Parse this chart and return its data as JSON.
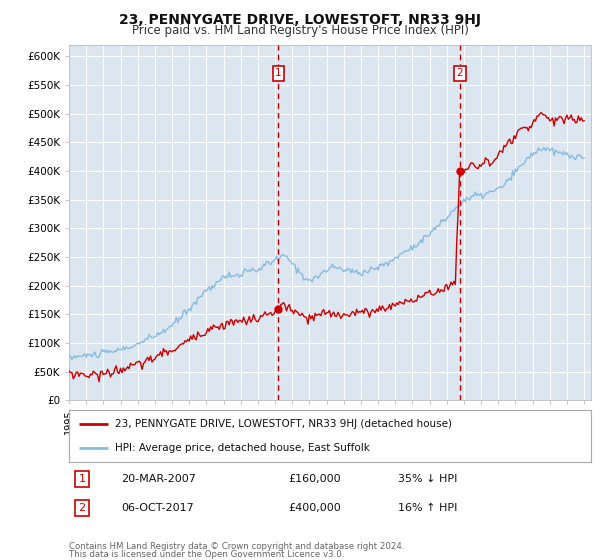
{
  "title": "23, PENNYGATE DRIVE, LOWESTOFT, NR33 9HJ",
  "subtitle": "Price paid vs. HM Land Registry's House Price Index (HPI)",
  "background_color": "#dce6f1",
  "ylim": [
    0,
    620000
  ],
  "yticks": [
    0,
    50000,
    100000,
    150000,
    200000,
    250000,
    300000,
    350000,
    400000,
    450000,
    500000,
    550000,
    600000
  ],
  "ytick_labels": [
    "£0",
    "£50K",
    "£100K",
    "£150K",
    "£200K",
    "£250K",
    "£300K",
    "£350K",
    "£400K",
    "£450K",
    "£500K",
    "£550K",
    "£600K"
  ],
  "xlim_min": 1995.0,
  "xlim_max": 2025.4,
  "legend1_label": "23, PENNYGATE DRIVE, LOWESTOFT, NR33 9HJ (detached house)",
  "legend2_label": "HPI: Average price, detached house, East Suffolk",
  "marker1_x": 2007.2,
  "marker1_value": 160000,
  "marker2_x": 2017.75,
  "marker2_value": 400000,
  "footer": "Contains HM Land Registry data © Crown copyright and database right 2024.\nThis data is licensed under the Open Government Licence v3.0.",
  "red_color": "#cc0000",
  "blue_color": "#88bbdd",
  "title_fontsize": 10,
  "subtitle_fontsize": 8.5
}
